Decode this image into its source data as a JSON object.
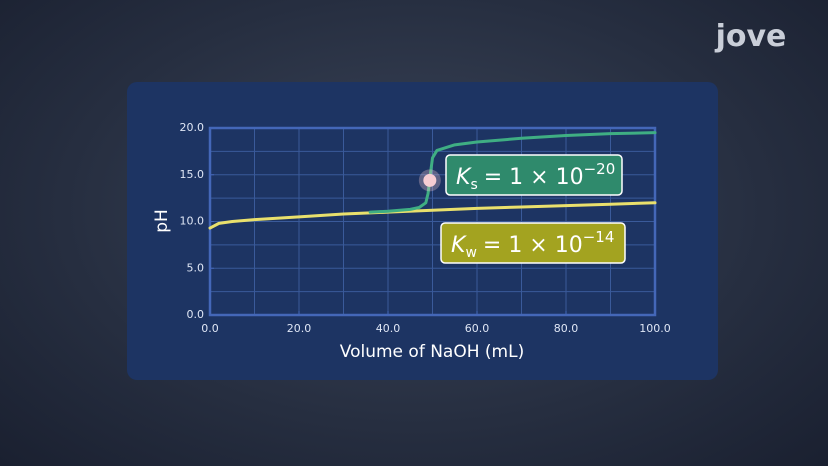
{
  "logo": "jove",
  "chart_data": {
    "type": "line",
    "xlabel": "Volume of NaOH (mL)",
    "ylabel": "pH",
    "xlim": [
      0,
      100
    ],
    "ylim": [
      0,
      20
    ],
    "xticks": [
      {
        "value": 0,
        "label": "0.0"
      },
      {
        "value": 20,
        "label": "20.0"
      },
      {
        "value": 40,
        "label": "40.0"
      },
      {
        "value": 60,
        "label": "60.0"
      },
      {
        "value": 80,
        "label": "80.0"
      },
      {
        "value": 100,
        "label": "100.0"
      }
    ],
    "yticks": [
      {
        "value": 0,
        "label": "0.0"
      },
      {
        "value": 5,
        "label": "5.0"
      },
      {
        "value": 10,
        "label": "10.0"
      },
      {
        "value": 15,
        "label": "15.0"
      },
      {
        "value": 20,
        "label": "20.0"
      }
    ],
    "xgrid": [
      10,
      20,
      30,
      40,
      50,
      60,
      70,
      80,
      90
    ],
    "ygrid": [
      2.5,
      5,
      7.5,
      10,
      12.5,
      15,
      17.5
    ],
    "grid": true,
    "series": [
      {
        "color": "#e9e06c",
        "x": [
          0,
          2,
          5,
          10,
          20,
          30,
          40,
          50,
          60,
          70,
          80,
          90,
          100
        ],
        "values": [
          9.3,
          9.8,
          10.0,
          10.2,
          10.5,
          10.8,
          11.0,
          11.2,
          11.4,
          11.55,
          11.7,
          11.85,
          12.0
        ]
      },
      {
        "color": "#3fae83",
        "x": [
          36,
          40,
          45,
          47,
          48.5,
          49,
          49.5,
          50,
          51,
          55,
          60,
          70,
          80,
          90,
          100
        ],
        "values": [
          11.0,
          11.1,
          11.3,
          11.5,
          12.0,
          13.0,
          15.0,
          16.8,
          17.6,
          18.2,
          18.5,
          18.9,
          19.2,
          19.4,
          19.5
        ]
      }
    ],
    "marker": {
      "x": 49.4,
      "y": 14.4,
      "color": "#f7cdd3"
    },
    "annotations": [
      {
        "symbol": "K",
        "subscript": "s",
        "text": "= 1 × 10",
        "exponent": "−20",
        "color": "#2f8a6c"
      },
      {
        "symbol": "K",
        "subscript": "w",
        "text": "= 1 × 10",
        "exponent": "−14",
        "color": "#a3a320"
      }
    ]
  }
}
